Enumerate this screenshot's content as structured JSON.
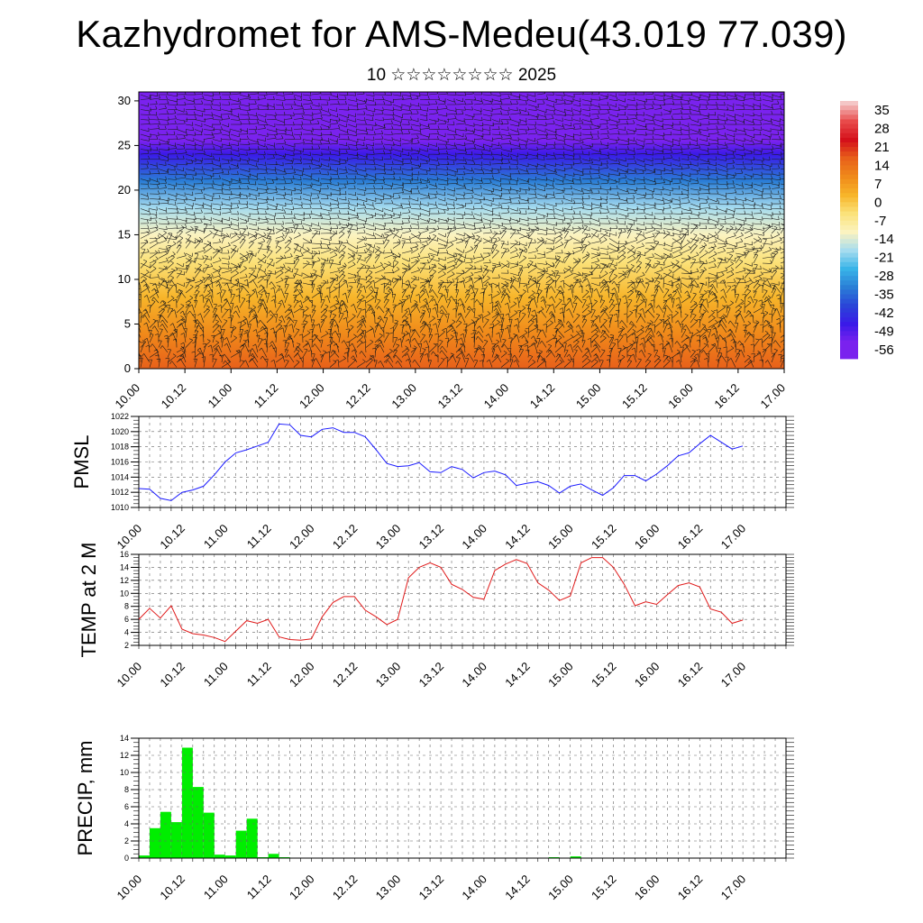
{
  "header": {
    "title": "Kazhydromet for AMS-Medeu(43.019 77.039)",
    "subtitle": "10 ☆☆☆☆☆☆☆☆ 2025"
  },
  "chart_data": [
    {
      "type": "heatmap",
      "title": "",
      "xlabel": "",
      "ylabel": "",
      "x_tick_labels": [
        "10.00",
        "10.12",
        "11.00",
        "11.12",
        "12.00",
        "12.12",
        "13.00",
        "13.12",
        "14.00",
        "14.12",
        "15.00",
        "15.12",
        "16.00",
        "16.12",
        "17.00"
      ],
      "y_ticks": [
        0,
        5,
        10,
        15,
        20,
        25,
        30
      ],
      "ylim": [
        0,
        31
      ],
      "color_scale": {
        "labels": [
          "35",
          "28",
          "21",
          "14",
          "7",
          "0",
          "-7",
          "-14",
          "-21",
          "-28",
          "-35",
          "-42",
          "-49",
          "-56"
        ],
        "colors_top_to_bottom": [
          "#f4c6c6",
          "#e84a4a",
          "#d4101a",
          "#e8601a",
          "#f08a1a",
          "#f7b52a",
          "#fbe27a",
          "#fbf3c0",
          "#a6dcef",
          "#38b4e8",
          "#2a7ed6",
          "#2a45d8",
          "#3a1ae8",
          "#7a22ee"
        ]
      },
      "temperature_bands_by_height": {
        "heights": [
          0,
          4,
          8,
          12,
          15,
          18,
          21,
          24,
          25.5,
          28,
          31
        ],
        "values": [
          14,
          7,
          0,
          -7,
          -14,
          -21,
          -35,
          -49,
          -56,
          -56,
          -56
        ]
      },
      "has_wind_barbs": true
    },
    {
      "type": "line",
      "ylabel": "PMSL",
      "ylim": [
        1010,
        1022
      ],
      "y_ticks": [
        1010,
        1012,
        1014,
        1016,
        1018,
        1020,
        1022
      ],
      "x_tick_labels": [
        "10.00",
        "10.12",
        "11.00",
        "11.12",
        "12.00",
        "12.12",
        "13.00",
        "13.12",
        "14.00",
        "14.12",
        "15.00",
        "15.12",
        "16.00",
        "16.12",
        "17.00"
      ],
      "x_hours": [
        0,
        3,
        6,
        9,
        12,
        15,
        18,
        21,
        24,
        27,
        30,
        33,
        36,
        39,
        42,
        45,
        48,
        51,
        54,
        57,
        60,
        63,
        66,
        69,
        72,
        75,
        78,
        81,
        84,
        87,
        90,
        93,
        96,
        99,
        102,
        105,
        108,
        111,
        114,
        117,
        120,
        123,
        126,
        129,
        132,
        135,
        138,
        141,
        144,
        147,
        150,
        153,
        156,
        159,
        162,
        165,
        168
      ],
      "series": [
        {
          "color": "#1a1aff",
          "values": [
            1012.5,
            1012.4,
            1011.2,
            1010.9,
            1012.0,
            1012.3,
            1012.8,
            1014.3,
            1016.0,
            1017.2,
            1017.6,
            1018.1,
            1018.6,
            1021.0,
            1020.9,
            1019.5,
            1019.3,
            1020.3,
            1020.5,
            1019.9,
            1019.9,
            1019.3,
            1017.6,
            1015.8,
            1015.4,
            1015.5,
            1015.9,
            1014.7,
            1014.6,
            1015.4,
            1015.0,
            1013.9,
            1014.6,
            1014.8,
            1014.3,
            1012.9,
            1013.2,
            1013.4,
            1012.9,
            1011.9,
            1012.8,
            1013.1,
            1012.3,
            1011.6,
            1012.6,
            1014.2,
            1014.2,
            1013.5,
            1014.4,
            1015.5,
            1016.8,
            1017.2,
            1018.4,
            1019.5,
            1018.6,
            1017.7,
            1018.1
          ]
        }
      ]
    },
    {
      "type": "line",
      "ylabel": "TEMP at 2 M",
      "ylim": [
        2,
        16
      ],
      "y_ticks": [
        2,
        4,
        6,
        8,
        10,
        12,
        14,
        16
      ],
      "x_tick_labels": [
        "10.00",
        "10.12",
        "11.00",
        "11.12",
        "12.00",
        "12.12",
        "13.00",
        "13.12",
        "14.00",
        "14.12",
        "15.00",
        "15.12",
        "16.00",
        "16.12",
        "17.00"
      ],
      "x_hours": [
        0,
        3,
        6,
        9,
        12,
        15,
        18,
        21,
        24,
        27,
        30,
        33,
        36,
        39,
        42,
        45,
        48,
        51,
        54,
        57,
        60,
        63,
        66,
        69,
        72,
        75,
        78,
        81,
        84,
        87,
        90,
        93,
        96,
        99,
        102,
        105,
        108,
        111,
        114,
        117,
        120,
        123,
        126,
        129,
        132,
        135,
        138,
        141,
        144,
        147,
        150,
        153,
        156,
        159,
        162,
        165,
        168
      ],
      "series": [
        {
          "color": "#e01a1a",
          "values": [
            6.0,
            7.7,
            6.2,
            8.1,
            4.5,
            3.8,
            3.6,
            3.2,
            2.6,
            4.2,
            5.8,
            5.4,
            6.0,
            3.3,
            2.9,
            2.8,
            3.0,
            6.4,
            8.6,
            9.5,
            9.5,
            7.4,
            6.4,
            5.2,
            6.0,
            12.4,
            14.0,
            14.7,
            14.0,
            11.4,
            10.6,
            9.4,
            9.1,
            13.5,
            14.5,
            15.2,
            14.6,
            11.6,
            10.5,
            8.9,
            9.6,
            14.7,
            15.5,
            15.5,
            14.0,
            11.4,
            8.1,
            8.7,
            8.3,
            9.8,
            11.2,
            11.6,
            11.0,
            7.6,
            7.1,
            5.4,
            5.9
          ]
        }
      ]
    },
    {
      "type": "bar",
      "ylabel": "PRECIP, mm",
      "ylim": [
        0,
        14
      ],
      "y_ticks": [
        0,
        2,
        4,
        6,
        8,
        10,
        12,
        14
      ],
      "x_tick_labels": [
        "10.00",
        "10.12",
        "11.00",
        "11.12",
        "12.00",
        "12.12",
        "13.00",
        "13.12",
        "14.00",
        "14.12",
        "15.00",
        "15.12",
        "16.00",
        "16.12",
        "17.00"
      ],
      "bar_width_hours": 3,
      "x_hours": [
        3,
        6,
        9,
        12,
        15,
        18,
        21,
        24,
        27,
        30,
        33,
        36,
        39,
        42,
        117,
        123
      ],
      "series": [
        {
          "color": "#00ee00",
          "values": [
            0.3,
            3.5,
            5.4,
            4.2,
            12.9,
            8.3,
            5.3,
            0.4,
            0.3,
            3.2,
            4.6,
            0.1,
            0.5,
            0.1,
            0.1,
            0.2
          ]
        }
      ]
    }
  ]
}
